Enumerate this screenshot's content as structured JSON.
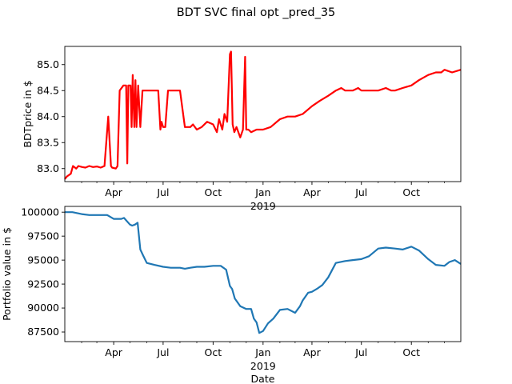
{
  "figure": {
    "title": "BDT SVC final opt _pred_35"
  },
  "chart_data": [
    {
      "type": "line",
      "title": "",
      "xlabel": "2019",
      "ylabel": "BDTprice in $",
      "x_tick_labels": [
        "Apr",
        "Jul",
        "Oct",
        "Jan",
        "Apr",
        "Jul",
        "Oct"
      ],
      "xlim": [
        "2018-01-01",
        "2019-12-31"
      ],
      "ylim": [
        82.75,
        85.35
      ],
      "y_ticks": [
        83.0,
        83.5,
        84.0,
        84.5,
        85.0
      ],
      "y_tick_labels": [
        "83.0",
        "83.5",
        "84.0",
        "84.5",
        "85.0"
      ],
      "grid": false,
      "series": [
        {
          "color": "#ff0000",
          "x": [
            "2018-01-01",
            "2018-01-05",
            "2018-01-12",
            "2018-01-16",
            "2018-01-22",
            "2018-01-26",
            "2018-02-02",
            "2018-02-08",
            "2018-02-15",
            "2018-02-22",
            "2018-03-01",
            "2018-03-08",
            "2018-03-15",
            "2018-03-22",
            "2018-03-27",
            "2018-03-29",
            "2018-04-05",
            "2018-04-08",
            "2018-04-12",
            "2018-04-19",
            "2018-04-24",
            "2018-04-26",
            "2018-04-28",
            "2018-05-02",
            "2018-05-04",
            "2018-05-06",
            "2018-05-09",
            "2018-05-11",
            "2018-05-13",
            "2018-05-16",
            "2018-05-20",
            "2018-05-24",
            "2018-05-27",
            "2018-06-01",
            "2018-06-08",
            "2018-06-15",
            "2018-06-22",
            "2018-06-26",
            "2018-06-28",
            "2018-07-01",
            "2018-07-05",
            "2018-07-10",
            "2018-07-20",
            "2018-08-01",
            "2018-08-10",
            "2018-08-20",
            "2018-08-25",
            "2018-09-01",
            "2018-09-10",
            "2018-09-20",
            "2018-10-01",
            "2018-10-08",
            "2018-10-12",
            "2018-10-18",
            "2018-10-22",
            "2018-10-27",
            "2018-11-01",
            "2018-11-03",
            "2018-11-06",
            "2018-11-09",
            "2018-11-13",
            "2018-11-20",
            "2018-11-25",
            "2018-11-29",
            "2018-12-01",
            "2018-12-05",
            "2018-12-10",
            "2018-12-20",
            "2019-01-01",
            "2019-01-15",
            "2019-02-01",
            "2019-02-15",
            "2019-03-01",
            "2019-03-15",
            "2019-04-01",
            "2019-04-15",
            "2019-05-01",
            "2019-05-15",
            "2019-05-25",
            "2019-06-01",
            "2019-06-15",
            "2019-06-25",
            "2019-07-01",
            "2019-07-15",
            "2019-08-01",
            "2019-08-15",
            "2019-08-25",
            "2019-09-01",
            "2019-09-15",
            "2019-10-01",
            "2019-10-15",
            "2019-11-01",
            "2019-11-15",
            "2019-11-25",
            "2019-12-01",
            "2019-12-15",
            "2019-12-31"
          ],
          "y": [
            82.8,
            82.85,
            82.9,
            83.05,
            83.0,
            83.05,
            83.03,
            83.02,
            83.05,
            83.03,
            83.04,
            83.02,
            83.05,
            84.0,
            83.05,
            83.02,
            83.0,
            83.05,
            84.5,
            84.6,
            84.6,
            83.1,
            84.6,
            84.6,
            83.8,
            84.8,
            83.8,
            84.7,
            83.8,
            84.6,
            83.8,
            84.5,
            84.5,
            84.5,
            84.5,
            84.5,
            84.5,
            83.75,
            83.9,
            83.8,
            83.8,
            84.5,
            84.5,
            84.5,
            83.8,
            83.8,
            83.85,
            83.75,
            83.8,
            83.9,
            83.85,
            83.7,
            83.95,
            83.75,
            84.05,
            83.9,
            85.2,
            85.25,
            83.85,
            83.7,
            83.8,
            83.6,
            83.75,
            85.15,
            83.75,
            83.75,
            83.7,
            83.75,
            83.75,
            83.8,
            83.95,
            84.0,
            84.0,
            84.05,
            84.2,
            84.3,
            84.4,
            84.5,
            84.55,
            84.5,
            84.5,
            84.55,
            84.5,
            84.5,
            84.5,
            84.55,
            84.5,
            84.5,
            84.55,
            84.6,
            84.7,
            84.8,
            84.85,
            84.85,
            84.9,
            84.85,
            84.9
          ]
        }
      ]
    },
    {
      "type": "line",
      "title": "",
      "xlabel": "Date",
      "year_label": "2019",
      "ylabel": "Portfolio value in $",
      "x_tick_labels": [
        "Apr",
        "Jul",
        "Oct",
        "Jan",
        "Apr",
        "Jul",
        "Oct"
      ],
      "xlim": [
        "2018-01-01",
        "2019-12-31"
      ],
      "ylim": [
        86500,
        100600
      ],
      "y_ticks": [
        87500,
        90000,
        92500,
        95000,
        97500,
        100000
      ],
      "y_tick_labels": [
        "87500",
        "90000",
        "92500",
        "95000",
        "97500",
        "100000"
      ],
      "grid": false,
      "series": [
        {
          "color": "#1f77b4",
          "x": [
            "2018-01-01",
            "2018-01-15",
            "2018-02-01",
            "2018-02-15",
            "2018-03-01",
            "2018-03-20",
            "2018-04-01",
            "2018-04-15",
            "2018-04-20",
            "2018-05-01",
            "2018-05-05",
            "2018-05-10",
            "2018-05-15",
            "2018-05-20",
            "2018-05-25",
            "2018-06-01",
            "2018-06-15",
            "2018-07-01",
            "2018-07-15",
            "2018-08-01",
            "2018-08-10",
            "2018-08-20",
            "2018-09-01",
            "2018-09-15",
            "2018-10-01",
            "2018-10-15",
            "2018-10-25",
            "2018-11-01",
            "2018-11-05",
            "2018-11-10",
            "2018-11-20",
            "2018-12-01",
            "2018-12-10",
            "2018-12-15",
            "2018-12-20",
            "2018-12-25",
            "2019-01-01",
            "2019-01-10",
            "2019-01-20",
            "2019-02-01",
            "2019-02-15",
            "2019-03-01",
            "2019-03-10",
            "2019-03-15",
            "2019-03-25",
            "2019-04-01",
            "2019-04-10",
            "2019-04-20",
            "2019-05-01",
            "2019-05-15",
            "2019-06-01",
            "2019-06-15",
            "2019-07-01",
            "2019-07-15",
            "2019-08-01",
            "2019-08-15",
            "2019-09-01",
            "2019-09-15",
            "2019-10-01",
            "2019-10-15",
            "2019-11-01",
            "2019-11-15",
            "2019-12-01",
            "2019-12-10",
            "2019-12-20",
            "2019-12-31"
          ],
          "y": [
            100000,
            100000,
            99800,
            99700,
            99700,
            99700,
            99300,
            99300,
            99400,
            98700,
            98600,
            98700,
            98900,
            96100,
            95500,
            94700,
            94500,
            94300,
            94200,
            94200,
            94100,
            94200,
            94300,
            94300,
            94400,
            94400,
            94000,
            92300,
            92000,
            91000,
            90200,
            89900,
            89900,
            88900,
            88500,
            87400,
            87600,
            88400,
            88900,
            89800,
            89900,
            89500,
            90200,
            90800,
            91600,
            91700,
            92000,
            92400,
            93200,
            94700,
            94900,
            95000,
            95100,
            95400,
            96200,
            96300,
            96200,
            96100,
            96400,
            96000,
            95100,
            94500,
            94400,
            94800,
            95000,
            94600
          ]
        }
      ]
    }
  ]
}
